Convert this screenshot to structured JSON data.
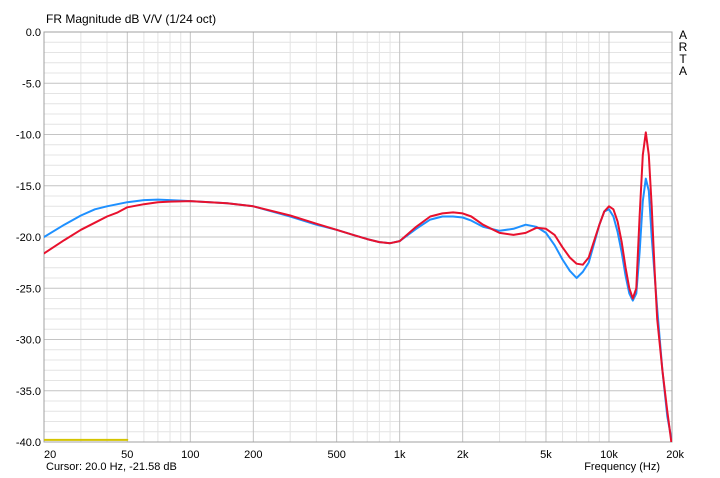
{
  "chart_data": {
    "type": "line",
    "title": "FR Magnitude dB V/V (1/24 oct)",
    "watermark": [
      "A",
      "R",
      "T",
      "A"
    ],
    "xlabel": "Frequency (Hz)",
    "ylabel": "",
    "xscale": "log",
    "xlim": [
      20,
      20000
    ],
    "ylim": [
      -40,
      0
    ],
    "grid": true,
    "x_ticks": [
      20,
      50,
      100,
      200,
      500,
      1000,
      2000,
      5000,
      10000,
      20000
    ],
    "x_tick_labels": [
      "20",
      "50",
      "100",
      "200",
      "500",
      "1k",
      "2k",
      "5k",
      "10k",
      "20k"
    ],
    "y_ticks": [
      0,
      -5,
      -10,
      -15,
      -20,
      -25,
      -30,
      -35,
      -40
    ],
    "y_tick_labels": [
      "0.0",
      "-5.0",
      "-10.0",
      "-15.0",
      "-20.0",
      "-25.0",
      "-30.0",
      "-35.0",
      "-40.0"
    ],
    "series": [
      {
        "color": "#1e90ff",
        "x": [
          20,
          25,
          30,
          35,
          40,
          50,
          60,
          70,
          80,
          90,
          100,
          150,
          200,
          300,
          400,
          500,
          600,
          700,
          800,
          900,
          1000,
          1200,
          1400,
          1600,
          1800,
          2000,
          2200,
          2500,
          3000,
          3500,
          4000,
          4500,
          5000,
          5500,
          6000,
          6500,
          7000,
          7500,
          8000,
          9000,
          9500,
          10000,
          10500,
          11000,
          11500,
          12000,
          12500,
          13000,
          13500,
          14000,
          14500,
          15000,
          15500,
          16000,
          17000,
          18000,
          19000,
          20000
        ],
        "y": [
          -20.0,
          -18.8,
          -17.9,
          -17.3,
          -17.0,
          -16.6,
          -16.4,
          -16.35,
          -16.4,
          -16.45,
          -16.5,
          -16.7,
          -17.0,
          -18.0,
          -18.8,
          -19.3,
          -19.8,
          -20.2,
          -20.5,
          -20.6,
          -20.4,
          -19.2,
          -18.3,
          -18.0,
          -18.0,
          -18.1,
          -18.4,
          -19.0,
          -19.4,
          -19.2,
          -18.8,
          -19.0,
          -19.6,
          -20.8,
          -22.2,
          -23.3,
          -24.0,
          -23.4,
          -22.5,
          -18.8,
          -17.5,
          -17.3,
          -18.0,
          -19.5,
          -21.5,
          -23.8,
          -25.5,
          -26.2,
          -25.5,
          -21.5,
          -16.5,
          -14.3,
          -15.5,
          -20.0,
          -27.0,
          -33.0,
          -37.5,
          -40.0
        ]
      },
      {
        "color": "#e8112d",
        "x": [
          20,
          25,
          30,
          35,
          40,
          45,
          50,
          60,
          70,
          80,
          100,
          150,
          200,
          300,
          400,
          500,
          600,
          700,
          800,
          900,
          1000,
          1200,
          1400,
          1600,
          1800,
          2000,
          2200,
          2500,
          3000,
          3500,
          4000,
          4500,
          5000,
          5500,
          6000,
          6500,
          7000,
          7500,
          8000,
          9000,
          9500,
          10000,
          10500,
          11000,
          11500,
          12000,
          12500,
          13000,
          13500,
          14000,
          14500,
          15000,
          15500,
          16000,
          16500,
          17000,
          18000,
          19000,
          20000
        ],
        "y": [
          -21.6,
          -20.3,
          -19.3,
          -18.6,
          -18.0,
          -17.6,
          -17.1,
          -16.8,
          -16.6,
          -16.55,
          -16.5,
          -16.7,
          -17.0,
          -17.9,
          -18.7,
          -19.3,
          -19.8,
          -20.2,
          -20.5,
          -20.6,
          -20.4,
          -19.0,
          -18.0,
          -17.7,
          -17.6,
          -17.7,
          -18.0,
          -18.8,
          -19.6,
          -19.8,
          -19.6,
          -19.1,
          -19.2,
          -19.8,
          -21.0,
          -22.0,
          -22.6,
          -22.7,
          -22.0,
          -18.8,
          -17.5,
          -17.0,
          -17.3,
          -18.5,
          -20.5,
          -23.0,
          -25.0,
          -26.0,
          -25.0,
          -18.0,
          -12.0,
          -9.8,
          -12.0,
          -17.0,
          -23.0,
          -28.0,
          -33.0,
          -37.0,
          -40.5
        ]
      },
      {
        "color": "#d4c400",
        "x": [
          20,
          50
        ],
        "y": [
          -39.8,
          -39.8
        ]
      }
    ]
  },
  "cursor": {
    "label": "Cursor: 20.0 Hz, -21.58 dB"
  }
}
